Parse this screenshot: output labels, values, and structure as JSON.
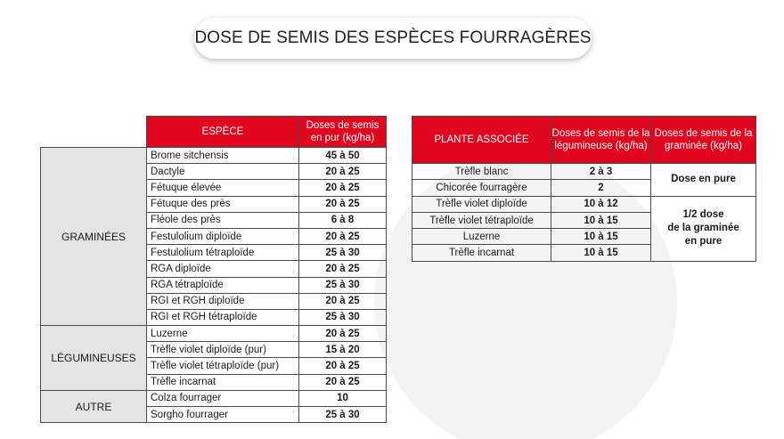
{
  "title": "DOSE DE SEMIS DES ESPÈCES FOURRAGÈRES",
  "colors": {
    "header_red": "#e1061f",
    "group_gray": "#e4e4e4"
  },
  "table1": {
    "headers": {
      "espece": "ESPÈCE",
      "doses": "Doses de semis en pur (kg/ha)"
    },
    "groups": [
      {
        "label": "GRAMINÉES"
      },
      {
        "label": "LÉGUMINEUSES"
      },
      {
        "label": "AUTRE"
      }
    ],
    "rows": [
      {
        "name": "Brome sitchensis",
        "dose": "45 à 50"
      },
      {
        "name": "Dactyle",
        "dose": "20 à 25"
      },
      {
        "name": "Fétuque élevée",
        "dose": "20 à 25"
      },
      {
        "name": "Fétuque des près",
        "dose": "20 à 25"
      },
      {
        "name": "Fléole des près",
        "dose": "6 à 8"
      },
      {
        "name": "Festulolium diploïde",
        "dose": "20 à 25"
      },
      {
        "name": "Festulolium tétraploïde",
        "dose": "25 à 30"
      },
      {
        "name": "RGA diploïde",
        "dose": "20 à 25"
      },
      {
        "name": "RGA tétraploïde",
        "dose": "25 à 30"
      },
      {
        "name": "RGI et RGH diploïde",
        "dose": "20 à 25"
      },
      {
        "name": "RGI et RGH tétraploïde",
        "dose": "25 à 30"
      },
      {
        "name": "Luzerne",
        "dose": "20 à 25"
      },
      {
        "name": "Trèfle violet diploïde (pur)",
        "dose": "15 à 20"
      },
      {
        "name": "Trèfle violet tétraploïde (pur)",
        "dose": "20 à 25"
      },
      {
        "name": "Trèfle incarnat",
        "dose": "20 à 25"
      },
      {
        "name": "Colza fourrager",
        "dose": "10"
      },
      {
        "name": "Sorgho fourrager",
        "dose": "25 à 30"
      }
    ]
  },
  "table2": {
    "headers": {
      "plante": "PLANTE ASSOCIÉE",
      "leg": "Doses de semis de la légumineuse (kg/ha)",
      "gram": "Doses de semis de la graminée (kg/ha)"
    },
    "rows": [
      {
        "plante": "Trèfle blanc",
        "leg": "2 à 3"
      },
      {
        "plante": "Chicorée fourragère",
        "leg": "2"
      },
      {
        "plante": "Trèfle violet diploïde",
        "leg": "10 à 12"
      },
      {
        "plante": "Trèfle violet tétraploïde",
        "leg": "10 à 15"
      },
      {
        "plante": "Luzerne",
        "leg": "10 à 15"
      },
      {
        "plante": "Trèfle incarnat",
        "leg": "10 à 15"
      }
    ],
    "graminee_merged": [
      {
        "text": "Dose en pure"
      },
      {
        "line1": "1/2 dose",
        "line2": "de la graminée",
        "line3": "en pure"
      }
    ]
  }
}
